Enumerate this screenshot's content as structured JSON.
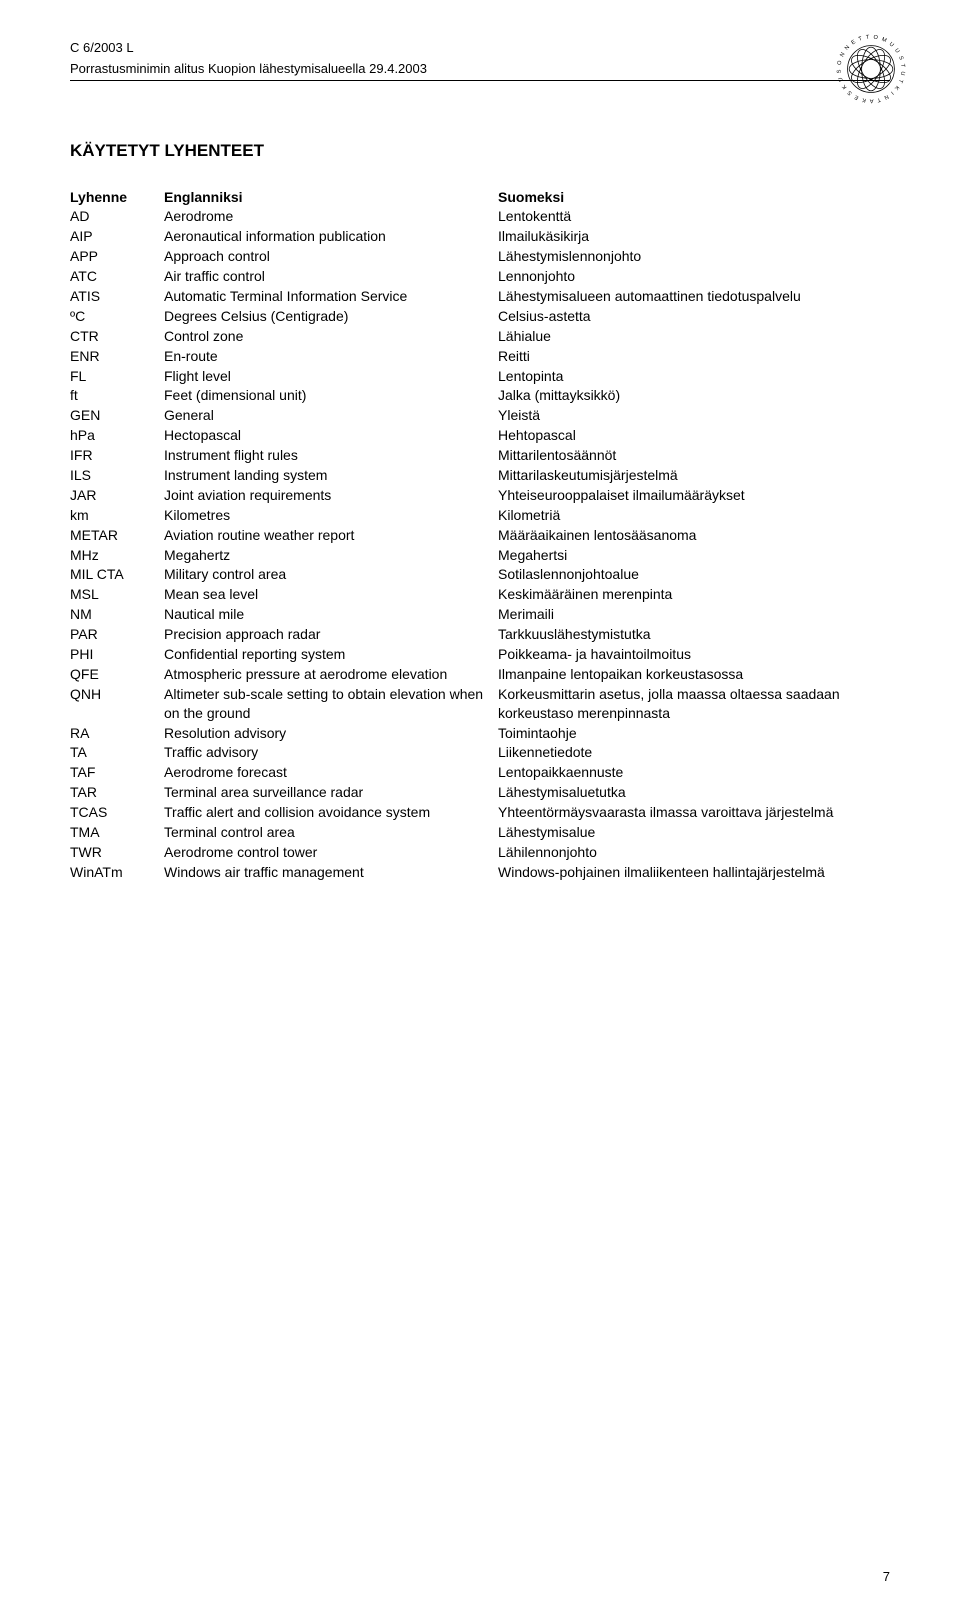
{
  "header": {
    "doc_ref": "C 6/2003 L",
    "subtitle": "Porrastusminimin alitus Kuopion lähestymisalueella 29.4.2003"
  },
  "section_heading": "KÄYTETYT LYHENTEET",
  "columns": {
    "a": "Lyhenne",
    "b": "Englanniksi",
    "c": "Suomeksi"
  },
  "rows": [
    {
      "a": "AD",
      "b": "Aerodrome",
      "c": "Lentokenttä"
    },
    {
      "a": "AIP",
      "b": "Aeronautical information publication",
      "c": "Ilmailukäsikirja"
    },
    {
      "a": "APP",
      "b": "Approach control",
      "c": "Lähestymislennonjohto"
    },
    {
      "a": "ATC",
      "b": "Air traffic control",
      "c": "Lennonjohto"
    },
    {
      "a": "ATIS",
      "b": "Automatic Terminal Information Service",
      "c": "Lähestymisalueen automaattinen tiedotuspalvelu"
    },
    {
      "a": "ºC",
      "b": "Degrees Celsius (Centigrade)",
      "c": "Celsius-astetta"
    },
    {
      "a": "CTR",
      "b": "Control zone",
      "c": "Lähialue"
    },
    {
      "a": "ENR",
      "b": "En-route",
      "c": "Reitti"
    },
    {
      "a": "FL",
      "b": "Flight level",
      "c": "Lentopinta"
    },
    {
      "a": "ft",
      "b": "Feet (dimensional unit)",
      "c": "Jalka (mittayksikkö)"
    },
    {
      "a": "GEN",
      "b": "General",
      "c": "Yleistä"
    },
    {
      "a": "hPa",
      "b": "Hectopascal",
      "c": "Hehtopascal"
    },
    {
      "a": "IFR",
      "b": "Instrument flight rules",
      "c": "Mittarilentosäännöt"
    },
    {
      "a": "ILS",
      "b": "Instrument landing system",
      "c": "Mittarilaskeutumisjärjestelmä"
    },
    {
      "a": "JAR",
      "b": "Joint aviation requirements",
      "c": "Yhteiseurooppalaiset ilmailumääräykset"
    },
    {
      "a": "km",
      "b": "Kilometres",
      "c": "Kilometriä"
    },
    {
      "a": "METAR",
      "b": "Aviation routine weather report",
      "c": "Määräaikainen lentosääsanoma"
    },
    {
      "a": "MHz",
      "b": "Megahertz",
      "c": "Megahertsi"
    },
    {
      "a": "MIL CTA",
      "b": "Military control area",
      "c": "Sotilaslennonjohtoalue"
    },
    {
      "a": "MSL",
      "b": "Mean sea level",
      "c": "Keskimääräinen merenpinta"
    },
    {
      "a": "NM",
      "b": "Nautical mile",
      "c": "Merimaili"
    },
    {
      "a": "PAR",
      "b": "Precision approach radar",
      "c": "Tarkkuuslähestymistutka"
    },
    {
      "a": "PHI",
      "b": "Confidential reporting system",
      "c": "Poikkeama- ja havaintoilmoitus"
    },
    {
      "a": "QFE",
      "b": "Atmospheric pressure at aerodrome elevation",
      "c": "Ilmanpaine lentopaikan korkeustasossa"
    },
    {
      "a": "QNH",
      "b": "Altimeter sub-scale setting to obtain elevation when on the ground",
      "c": "Korkeusmittarin asetus, jolla maassa oltaessa saadaan korkeustaso merenpinnasta"
    },
    {
      "a": "RA",
      "b": "Resolution advisory",
      "c": "Toimintaohje"
    },
    {
      "a": "TA",
      "b": "Traffic advisory",
      "c": "Liikennetiedote"
    },
    {
      "a": "TAF",
      "b": "Aerodrome forecast",
      "c": "Lentopaikkaennuste"
    },
    {
      "a": "TAR",
      "b": "Terminal area surveillance radar",
      "c": "Lähestymisaluetutka"
    },
    {
      "a": "TCAS",
      "b": "Traffic alert and collision avoidance system",
      "c": "Yhteentörmäysvaarasta ilmassa varoittava järjestelmä"
    },
    {
      "a": "TMA",
      "b": "Terminal control area",
      "c": "Lähestymisalue"
    },
    {
      "a": "TWR",
      "b": "Aerodrome control tower",
      "c": "Lähilennonjohto"
    },
    {
      "a": "WinATm",
      "b": "Windows air traffic management",
      "c": "Windows-pohjainen ilmaliikenteen hallintajärjestelmä"
    }
  ],
  "page_number": "7"
}
